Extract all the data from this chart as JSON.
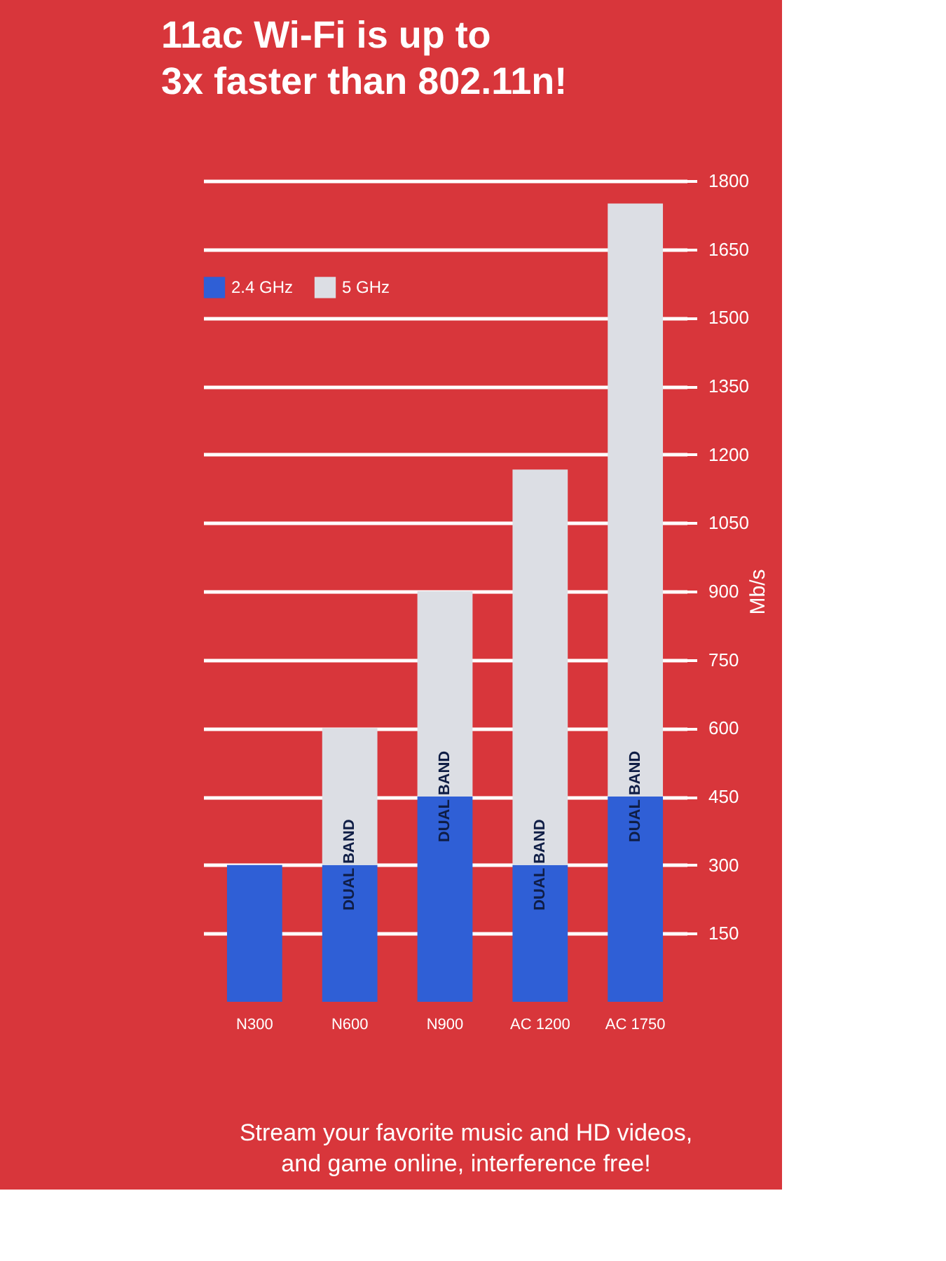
{
  "chart_data": {
    "type": "bar",
    "title": "11ac Wi-Fi is up to\n3x faster than 802.11n!",
    "categories": [
      "N300",
      "N600",
      "N900",
      "AC 1200",
      "AC 1750"
    ],
    "series": [
      {
        "name": "2.4 GHz",
        "color": "#2f5fd6",
        "values": [
          300,
          300,
          450,
          300,
          450
        ]
      },
      {
        "name": "5 GHz",
        "color": "#dcdee4",
        "values": [
          null,
          300,
          450,
          867,
          1300
        ]
      }
    ],
    "stacked": true,
    "ylabel": "Mb/s",
    "ylim": [
      0,
      1800
    ],
    "yticks": [
      150,
      300,
      450,
      600,
      750,
      900,
      1050,
      1200,
      1350,
      1500,
      1650,
      1800
    ],
    "grid": "y",
    "legend": "top left",
    "annotations": [
      {
        "text": "DUAL BAND",
        "x": "N600",
        "y": 300
      },
      {
        "text": "DUAL BAND",
        "x": "N900",
        "y": 450
      },
      {
        "text": "DUAL BAND",
        "x": "AC 1200",
        "y": 300
      },
      {
        "text": "DUAL BAND",
        "x": "AC 1750",
        "y": 450
      },
      "Stream your favorite music and HD videos,\nand game online, interference free!"
    ]
  }
}
